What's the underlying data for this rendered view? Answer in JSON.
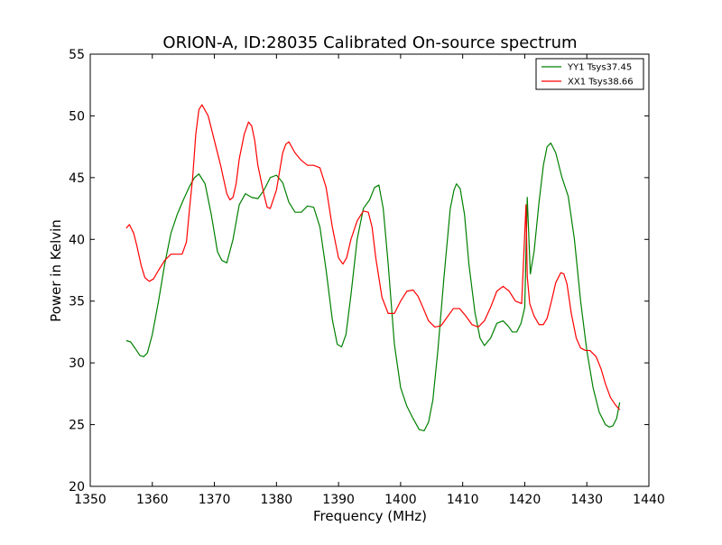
{
  "chart_data": {
    "type": "line",
    "title": "ORION-A, ID:28035 Calibrated On-source spectrum",
    "xlabel": "Frequency (MHz)",
    "ylabel": "Power in Kelvin",
    "xlim": [
      1350,
      1440
    ],
    "ylim": [
      20,
      55
    ],
    "xticks": [
      1350,
      1360,
      1370,
      1380,
      1390,
      1400,
      1410,
      1420,
      1430,
      1440
    ],
    "yticks": [
      20,
      25,
      30,
      35,
      40,
      45,
      50,
      55
    ],
    "grid": false,
    "legend_position": "top-right",
    "series": [
      {
        "name": "YY1 Tsys37.45",
        "color": "#008000",
        "x": [
          1355.8,
          1356.5,
          1357.2,
          1358.0,
          1358.6,
          1359.2,
          1360.0,
          1361.0,
          1362.0,
          1363.0,
          1364.0,
          1365.0,
          1366.0,
          1366.8,
          1367.5,
          1368.5,
          1369.5,
          1370.5,
          1371.2,
          1372.0,
          1373.0,
          1374.0,
          1375.0,
          1376.0,
          1377.0,
          1378.0,
          1379.0,
          1380.0,
          1381.0,
          1382.0,
          1383.0,
          1384.0,
          1385.0,
          1386.0,
          1387.0,
          1388.0,
          1389.0,
          1389.8,
          1390.5,
          1391.2,
          1392.0,
          1393.0,
          1394.0,
          1395.0,
          1395.8,
          1396.5,
          1397.2,
          1398.0,
          1399.0,
          1400.0,
          1401.0,
          1402.0,
          1403.0,
          1403.8,
          1404.5,
          1405.2,
          1406.0,
          1407.0,
          1408.0,
          1408.6,
          1409.0,
          1409.6,
          1410.3,
          1411.0,
          1412.0,
          1412.8,
          1413.5,
          1414.5,
          1415.5,
          1416.5,
          1417.3,
          1418.0,
          1418.7,
          1419.4,
          1420.0,
          1420.4,
          1420.9,
          1421.5,
          1422.3,
          1423.0,
          1423.6,
          1424.2,
          1425.0,
          1426.0,
          1427.0,
          1428.0,
          1429.0,
          1430.0,
          1431.0,
          1432.0,
          1433.0,
          1433.6,
          1434.2,
          1434.8,
          1435.3
        ],
        "values": [
          31.8,
          31.7,
          31.2,
          30.6,
          30.5,
          30.8,
          32.3,
          35.0,
          38.0,
          40.5,
          42.0,
          43.2,
          44.3,
          45.0,
          45.3,
          44.5,
          42.0,
          39.0,
          38.3,
          38.1,
          40.0,
          42.8,
          43.7,
          43.4,
          43.3,
          44.0,
          45.0,
          45.2,
          44.6,
          43.0,
          42.2,
          42.2,
          42.7,
          42.6,
          41.0,
          37.5,
          33.5,
          31.5,
          31.3,
          32.3,
          35.5,
          40.0,
          42.5,
          43.2,
          44.2,
          44.4,
          42.5,
          38.0,
          31.5,
          28.0,
          26.5,
          25.5,
          24.6,
          24.5,
          25.2,
          27.0,
          31.0,
          37.0,
          42.5,
          44.0,
          44.5,
          44.1,
          42.0,
          38.0,
          34.0,
          32.0,
          31.4,
          32.0,
          33.2,
          33.4,
          33.0,
          32.5,
          32.5,
          33.2,
          34.5,
          43.4,
          37.2,
          39.0,
          43.0,
          46.0,
          47.5,
          47.8,
          47.0,
          45.0,
          43.5,
          40.0,
          35.0,
          31.0,
          28.0,
          26.0,
          25.0,
          24.8,
          24.9,
          25.5,
          26.8
        ]
      },
      {
        "name": "XX1 Tsys38.66",
        "color": "#ff0000",
        "x": [
          1355.8,
          1356.3,
          1357.0,
          1357.5,
          1358.2,
          1358.8,
          1359.5,
          1360.2,
          1361.0,
          1362.0,
          1363.0,
          1364.0,
          1364.8,
          1365.5,
          1366.0,
          1366.5,
          1367.0,
          1367.5,
          1368.0,
          1369.0,
          1370.0,
          1371.0,
          1372.0,
          1372.5,
          1373.0,
          1373.5,
          1374.0,
          1374.8,
          1375.5,
          1376.0,
          1376.5,
          1377.0,
          1378.0,
          1378.5,
          1379.0,
          1380.0,
          1381.0,
          1381.5,
          1382.0,
          1383.0,
          1384.0,
          1385.0,
          1386.0,
          1387.0,
          1388.0,
          1389.0,
          1390.0,
          1390.7,
          1391.3,
          1392.0,
          1393.0,
          1394.0,
          1394.8,
          1395.4,
          1396.0,
          1397.0,
          1398.0,
          1399.0,
          1400.0,
          1401.0,
          1402.0,
          1402.8,
          1403.5,
          1404.5,
          1405.5,
          1406.5,
          1407.5,
          1408.5,
          1409.5,
          1410.5,
          1411.5,
          1412.5,
          1413.5,
          1414.5,
          1415.5,
          1416.5,
          1417.5,
          1418.5,
          1419.5,
          1420.2,
          1420.4,
          1420.8,
          1421.5,
          1422.3,
          1423.0,
          1423.6,
          1424.3,
          1425.0,
          1425.8,
          1426.3,
          1426.8,
          1427.5,
          1428.3,
          1429.0,
          1429.8,
          1430.5,
          1431.5,
          1432.3,
          1433.0,
          1433.8,
          1434.6,
          1435.3
        ],
        "values": [
          40.9,
          41.2,
          40.5,
          39.5,
          37.9,
          36.9,
          36.6,
          36.8,
          37.5,
          38.3,
          38.8,
          38.8,
          38.8,
          39.8,
          42.5,
          45.0,
          48.5,
          50.5,
          50.9,
          50.0,
          48.0,
          46.0,
          43.7,
          43.2,
          43.4,
          44.5,
          46.5,
          48.5,
          49.5,
          49.2,
          48.0,
          46.0,
          43.6,
          42.6,
          42.5,
          44.0,
          47.0,
          47.7,
          47.9,
          47.0,
          46.4,
          46.0,
          46.0,
          45.8,
          44.2,
          41.0,
          38.5,
          38.0,
          38.5,
          40.0,
          41.5,
          42.3,
          42.2,
          41.0,
          38.5,
          35.3,
          34.0,
          34.0,
          35.0,
          35.8,
          35.9,
          35.4,
          34.6,
          33.4,
          32.9,
          33.0,
          33.7,
          34.4,
          34.4,
          33.8,
          33.1,
          32.9,
          33.4,
          34.5,
          35.8,
          36.2,
          35.8,
          35.0,
          34.8,
          42.8,
          37.0,
          34.8,
          33.8,
          33.1,
          33.1,
          33.6,
          35.0,
          36.5,
          37.3,
          37.2,
          36.4,
          34.0,
          32.0,
          31.2,
          31.0,
          31.0,
          30.5,
          29.5,
          28.3,
          27.2,
          26.6,
          26.2
        ]
      }
    ]
  }
}
